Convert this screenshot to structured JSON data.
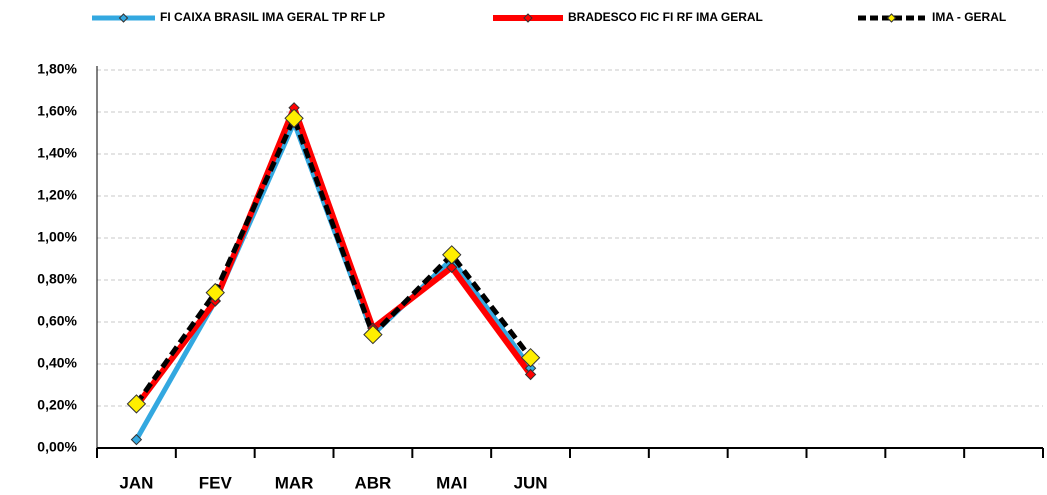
{
  "chart_data": {
    "type": "line",
    "categories": [
      "JAN",
      "FEV",
      "MAR",
      "ABR",
      "MAI",
      "JUN",
      null,
      null,
      null,
      null,
      null,
      null
    ],
    "series": [
      {
        "name": "FI CAIXA BRASIL IMA GERAL TP RF LP",
        "color": "#33a8e0",
        "values": [
          0.04,
          0.7,
          1.55,
          0.54,
          0.9,
          0.38,
          null,
          null,
          null,
          null,
          null,
          null
        ]
      },
      {
        "name": "BRADESCO FIC FI RF IMA GERAL",
        "color": "#ff0000",
        "values": [
          0.2,
          0.7,
          1.62,
          0.57,
          0.86,
          0.35,
          null,
          null,
          null,
          null,
          null,
          null
        ]
      },
      {
        "name": "IMA - GERAL",
        "color": "#000000",
        "marker_color": "#ffee00",
        "values": [
          0.21,
          0.74,
          1.57,
          0.54,
          0.92,
          0.43,
          null,
          null,
          null,
          null,
          null,
          null
        ]
      }
    ],
    "ylim": [
      0,
      1.8
    ],
    "yticks": [
      {
        "value": 0,
        "label": "0,00%"
      },
      {
        "value": 0.2,
        "label": "0,20%"
      },
      {
        "value": 0.4,
        "label": "0,40%"
      },
      {
        "value": 0.6,
        "label": "0,60%"
      },
      {
        "value": 0.8,
        "label": "0,80%"
      },
      {
        "value": 1.0,
        "label": "1,00%"
      },
      {
        "value": 1.2,
        "label": "1,20%"
      },
      {
        "value": 1.4,
        "label": "1,40%"
      },
      {
        "value": 1.6,
        "label": "1,60%"
      },
      {
        "value": 1.8,
        "label": "1,80%"
      }
    ],
    "grid": true
  }
}
